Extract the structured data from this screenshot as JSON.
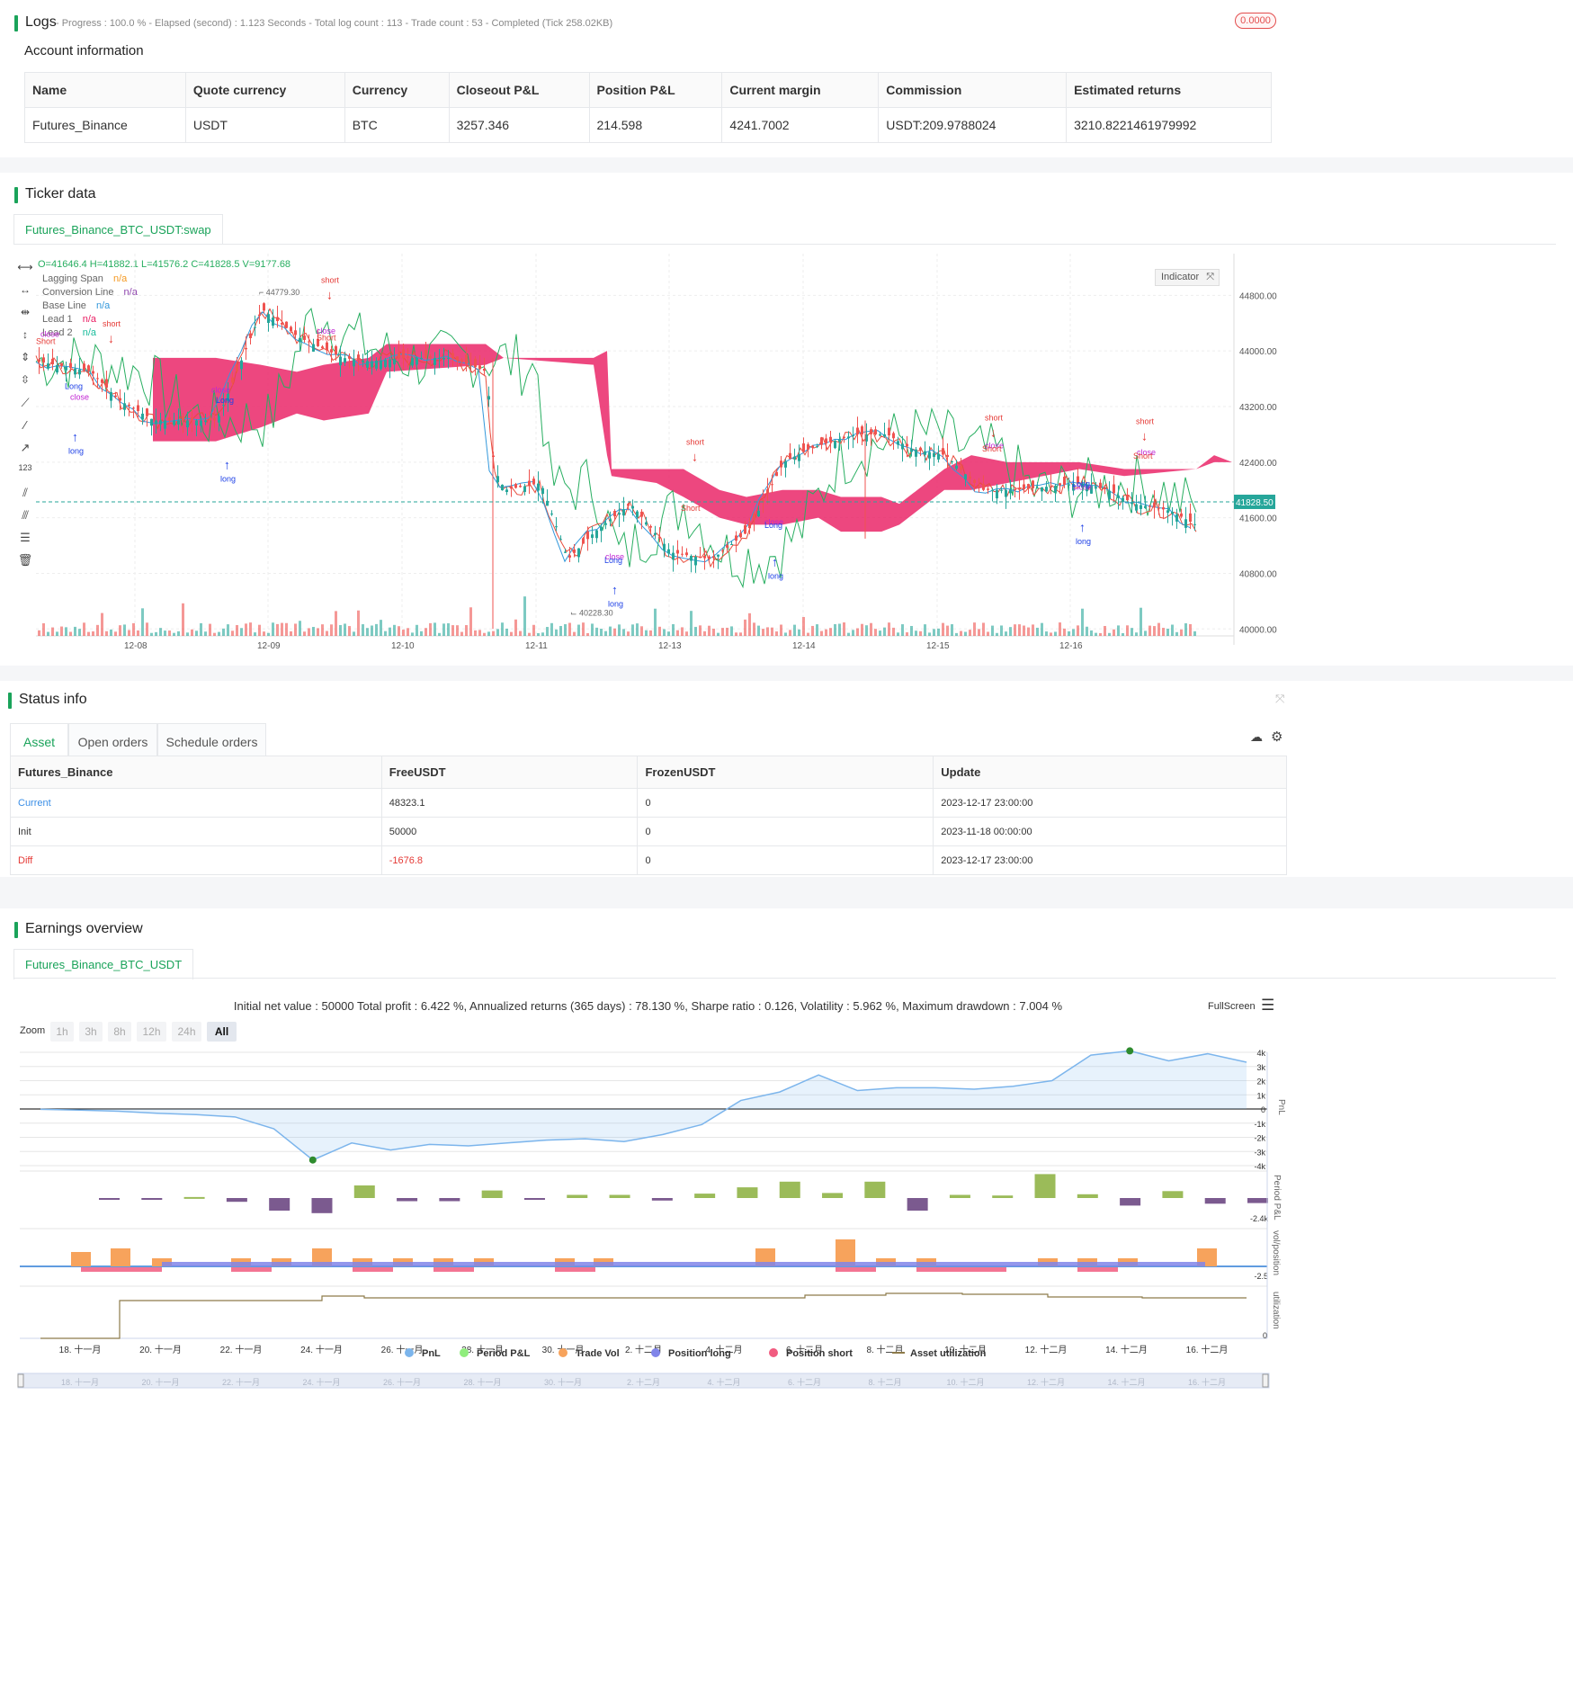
{
  "logs": {
    "title": "Logs",
    "progress_line": "- Progress : 100.0 % - Elapsed (second) : 1.123  Seconds - Total log count : 113 - Trade count : 53 - Completed (Tick 258.02KB)",
    "badge": "0.0000"
  },
  "account": {
    "heading": "Account information",
    "columns": [
      "Name",
      "Quote currency",
      "Currency",
      "Closeout P&L",
      "Position P&L",
      "Current margin",
      "Commission",
      "Estimated returns"
    ],
    "row": [
      "Futures_Binance",
      "USDT",
      "BTC",
      "3257.346",
      "214.598",
      "4241.7002",
      "USDT:209.9788024",
      "3210.8221461979992"
    ]
  },
  "ticker": {
    "title": "Ticker data",
    "tab": "Futures_Binance_BTC_USDT:swap",
    "ohlc": "O=41646.4 H=41882.1 L=41576.2 C=41828.5 V=9177.68",
    "legend": [
      {
        "name": "Lagging Span",
        "value": "n/a",
        "color": "#f59a23"
      },
      {
        "name": "Conversion Line",
        "value": "n/a",
        "color": "#8e44ad"
      },
      {
        "name": "Base Line",
        "value": "n/a",
        "color": "#3498db"
      },
      {
        "name": "Lead 1",
        "value": "n/a",
        "color": "#e91e63"
      },
      {
        "name": "Lead 2",
        "value": "n/a",
        "color": "#1abc9c"
      }
    ],
    "indicator_button": "Indicator",
    "price_labels": [
      "44800.00",
      "44000.00",
      "43200.00",
      "42400.00",
      "41600.00",
      "40800.00",
      "40000.00"
    ],
    "last_price": "41828.50",
    "x_labels": [
      "12-08",
      "12-09",
      "12-10",
      "12-11",
      "12-13",
      "12-14",
      "12-15",
      "12-16"
    ],
    "high_mark": "44779.30",
    "low_mark": "40228.30",
    "signals": {
      "long": "long",
      "short": "short",
      "close": "close",
      "Long": "Long",
      "Short": "Short"
    }
  },
  "status": {
    "title": "Status info",
    "tabs": [
      "Asset",
      "Open orders",
      "Schedule orders"
    ],
    "columns": [
      "Futures_Binance",
      "FreeUSDT",
      "FrozenUSDT",
      "Update"
    ],
    "rows": [
      {
        "label": "Current",
        "free": "48323.1",
        "frozen": "0",
        "update": "2023-12-17 23:00:00"
      },
      {
        "label": "Init",
        "free": "50000",
        "frozen": "0",
        "update": "2023-11-18 00:00:00"
      },
      {
        "label": "Diff",
        "free": "-1676.8",
        "frozen": "0",
        "update": "2023-12-17 23:00:00"
      }
    ]
  },
  "earnings": {
    "title": "Earnings overview",
    "tab": "Futures_Binance_BTC_USDT",
    "summary": "Initial net value : 50000 Total profit : 6.422 %, Annualized returns (365 days) : 78.130 %, Sharpe ratio : 0.126, Volatility : 5.962 %, Maximum drawdown : 7.004 %",
    "fullscreen": "FullScreen",
    "zoom_label": "Zoom",
    "zoom_buttons": [
      "1h",
      "3h",
      "8h",
      "12h",
      "24h",
      "All"
    ],
    "pnl_ticks": [
      "4k",
      "3k",
      "2k",
      "1k",
      "0",
      "-1k",
      "-2k",
      "-3k",
      "-4k"
    ],
    "axis_titles": {
      "pnl": "PnL",
      "period": "Period P&L",
      "vol": "vol/position",
      "util": "utilization"
    },
    "period_min": "-2.4k",
    "vol_min": "-2.5",
    "util_zero": "0",
    "x_labels": [
      "18. 十一月",
      "20. 十一月",
      "22. 十一月",
      "24. 十一月",
      "26. 十一月",
      "28. 十一月",
      "30. 十一月",
      "2. 十二月",
      "4. 十二月",
      "6. 十二月",
      "8. 十二月",
      "10. 十二月",
      "12. 十二月",
      "14. 十二月",
      "16. 十二月"
    ],
    "legend": [
      {
        "name": "PnL",
        "color": "#7cb5ec"
      },
      {
        "name": "Period P&L",
        "color": "#90ed7d"
      },
      {
        "name": "Trade Vol",
        "color": "#f7a35c"
      },
      {
        "name": "Position long",
        "color": "#8085e9"
      },
      {
        "name": "Position short",
        "color": "#f15c80"
      },
      {
        "name": "Asset utilization",
        "color": "#8d7b4a"
      }
    ],
    "chart_data": {
      "type": "line",
      "ylim": [
        -4000,
        4000
      ],
      "pnl": [
        -20,
        -80,
        -160,
        -300,
        -400,
        -560,
        -1400,
        -3600,
        -2400,
        -2900,
        -2500,
        -2600,
        -2400,
        -2200,
        -2100,
        -2300,
        -1800,
        -1100,
        600,
        1200,
        2400,
        1300,
        1500,
        1500,
        1400,
        1600,
        2000,
        3800,
        4100,
        3400,
        3900,
        3300
      ],
      "period_pnl": [
        -100,
        -100,
        80,
        -300,
        -1000,
        -1200,
        1000,
        -250,
        -250,
        600,
        -80,
        250,
        250,
        -200,
        350,
        850,
        1300,
        400,
        1300,
        -1000,
        250,
        200,
        1900,
        300,
        -600,
        550,
        -450,
        -400
      ],
      "trade_vol": [
        1.6,
        2.0,
        0.9,
        0.9,
        0.9,
        2.0,
        0.9,
        0.9,
        0.9,
        0.9,
        0.9,
        0.9,
        2.0,
        3.0,
        0.9,
        0.9,
        0.9,
        0.9,
        0.9,
        2.0
      ]
    }
  }
}
